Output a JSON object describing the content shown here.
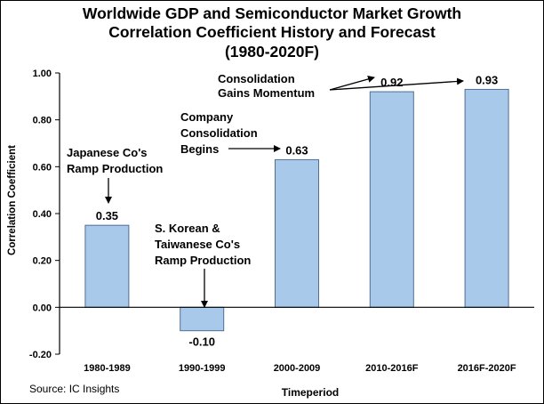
{
  "chart_data": {
    "type": "bar",
    "title_lines": [
      "Worldwide GDP and Semiconductor  Market Growth",
      "Correlation Coefficient History and Forecast",
      "(1980-2020F)"
    ],
    "categories": [
      "1980-1989",
      "1990-1999",
      "2000-2009",
      "2010-2016F",
      "2016F-2020F"
    ],
    "values": [
      0.35,
      -0.1,
      0.63,
      0.92,
      0.93
    ],
    "data_labels": [
      "0.35",
      "-0.10",
      "0.63",
      "0.92",
      "0.93"
    ],
    "xlabel": "Timeperiod",
    "ylabel": "Correlation Coefficient",
    "ylim": [
      -0.2,
      1.0
    ],
    "yticks": [
      {
        "value": 1.0,
        "label": "1.00"
      },
      {
        "value": 0.8,
        "label": "0.80"
      },
      {
        "value": 0.6,
        "label": "0.60"
      },
      {
        "value": 0.4,
        "label": "0.40"
      },
      {
        "value": 0.2,
        "label": "0.20"
      },
      {
        "value": 0.0,
        "label": "0.00"
      },
      {
        "value": -0.2,
        "label": "-0.20"
      }
    ],
    "bar_color": "#a9c9ea",
    "bar_edge_color": "#4f6f94",
    "annotations": [
      {
        "lines": [
          "Japanese Co's",
          "Ramp Production"
        ]
      },
      {
        "lines": [
          "S. Korean &",
          "Taiwanese Co's",
          "Ramp Production"
        ]
      },
      {
        "lines": [
          "Company",
          "Consolidation",
          "Begins"
        ]
      },
      {
        "lines": [
          "Consolidation",
          "Gains Momentum"
        ]
      }
    ],
    "source": "Source: IC Insights"
  }
}
